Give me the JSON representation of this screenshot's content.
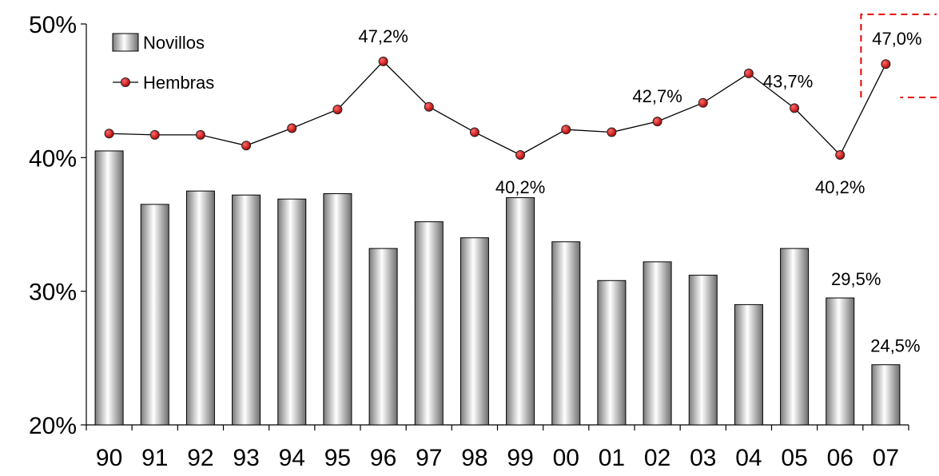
{
  "chart_data": {
    "type": "bar",
    "categories": [
      "90",
      "91",
      "92",
      "93",
      "94",
      "95",
      "96",
      "97",
      "98",
      "99",
      "00",
      "01",
      "02",
      "03",
      "04",
      "05",
      "06",
      "07"
    ],
    "series": [
      {
        "name": "Novillos",
        "kind": "bar",
        "values": [
          40.5,
          36.5,
          37.5,
          37.2,
          36.9,
          37.3,
          33.2,
          35.2,
          34.0,
          37.0,
          33.7,
          30.8,
          32.2,
          31.2,
          29.0,
          33.2,
          29.5,
          24.5
        ]
      },
      {
        "name": "Hembras",
        "kind": "line",
        "values": [
          41.8,
          41.7,
          41.7,
          40.9,
          42.2,
          43.6,
          47.2,
          43.8,
          41.9,
          40.2,
          42.1,
          41.9,
          42.7,
          44.1,
          46.3,
          43.7,
          40.2,
          47.0
        ]
      }
    ],
    "ylim": [
      20,
      50
    ],
    "yticks": [
      "20%",
      "30%",
      "40%",
      "50%"
    ],
    "ytick_values": [
      20,
      30,
      40,
      50
    ],
    "grid": false,
    "legend_position": "top-left",
    "data_labels": [
      {
        "series": "Hembras",
        "category": "96",
        "text": "47,2%"
      },
      {
        "series": "Hembras",
        "category": "99",
        "text": "40,2%"
      },
      {
        "series": "Hembras",
        "category": "02",
        "text": "42,7%"
      },
      {
        "series": "Hembras",
        "category": "05",
        "text": "43,7%"
      },
      {
        "series": "Hembras",
        "category": "06",
        "text": "40,2%"
      },
      {
        "series": "Hembras",
        "category": "07",
        "text": "47,0%"
      },
      {
        "series": "Novillos",
        "category": "06",
        "text": "29,5%"
      },
      {
        "series": "Novillos",
        "category": "07",
        "text": "24,5%"
      }
    ],
    "highlight": {
      "category": "07",
      "style": "dashed-box",
      "color": "#e60000"
    },
    "colors": {
      "line": "#000000",
      "marker": "#e00000",
      "bar_edge": "#000000"
    }
  }
}
